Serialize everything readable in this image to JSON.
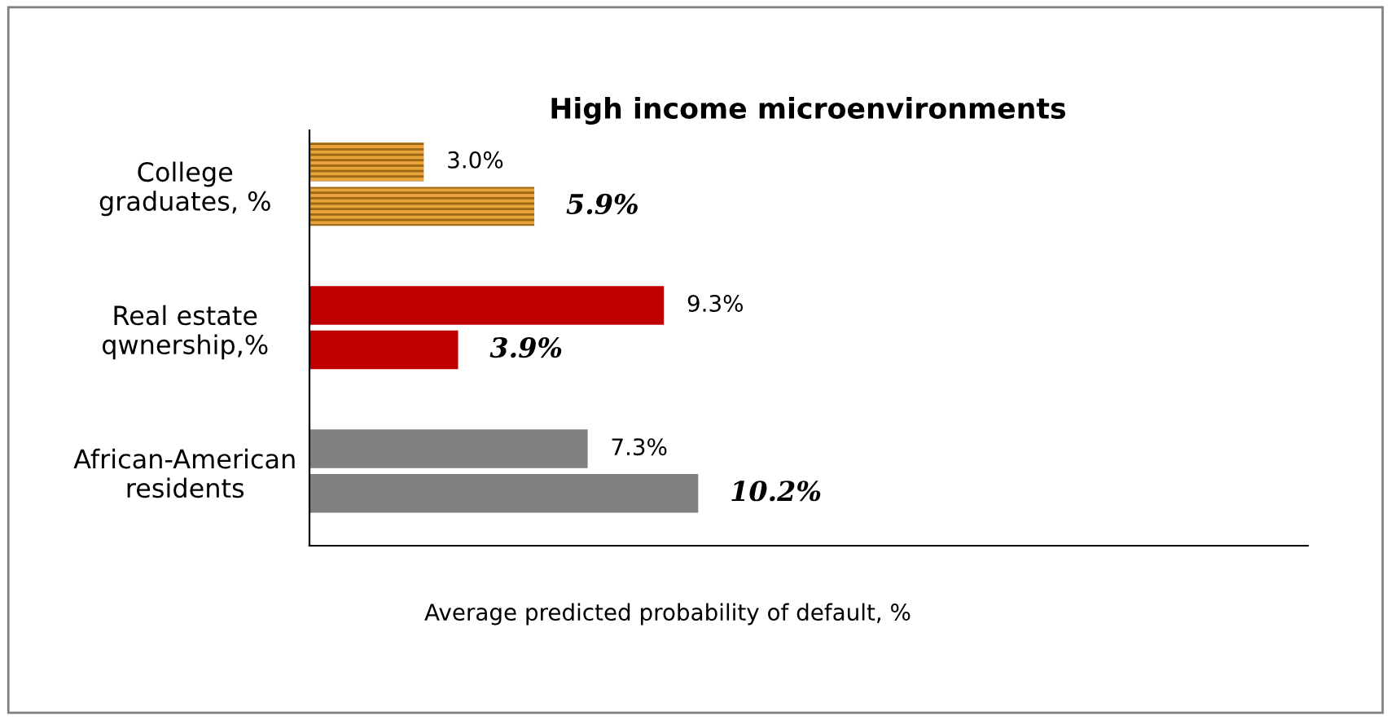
{
  "chart_data": {
    "type": "bar",
    "orientation": "horizontal",
    "title": "High income microenvironments",
    "xlabel": "Average predicted probability of default, %",
    "categories": [
      "College\ngraduates, %",
      "Real estate\nqwnership,%",
      "African-American\nresidents"
    ],
    "series": [
      {
        "colors": [
          "#e8a33a",
          "#c00000",
          "#808080"
        ],
        "values": [
          3.0,
          9.3,
          7.3
        ],
        "value_labels": [
          "3.0%",
          "9.3%",
          "7.3%"
        ]
      },
      {
        "colors": [
          "#e8a33a",
          "#c00000",
          "#808080"
        ],
        "values": [
          5.9,
          3.9,
          10.2
        ],
        "value_labels": [
          "5.9%",
          "3.9%",
          "10.2%"
        ]
      }
    ],
    "xlim": [
      0,
      26.2
    ],
    "grid": false,
    "legend": false,
    "tick_labels": "y"
  }
}
